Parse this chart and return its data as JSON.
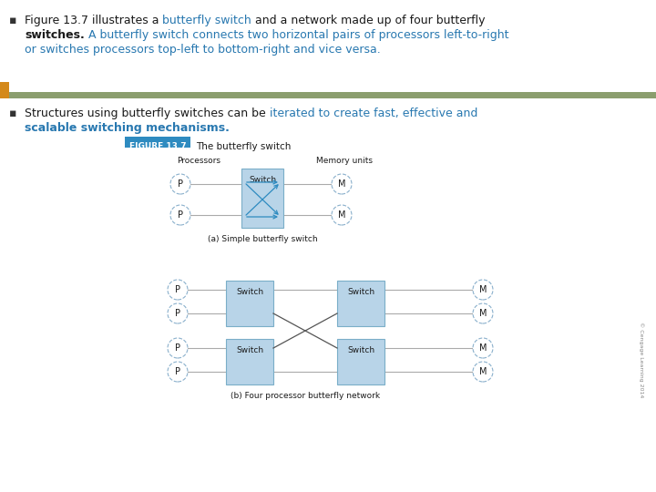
{
  "bg_color": "#ffffff",
  "header_bar_color": "#8b9e6e",
  "orange_bar_color": "#d4891a",
  "text_color": "#1a1a1a",
  "blue_text_color": "#2878b0",
  "bold_blue_text_color": "#2878b0",
  "fig_label_bg": "#2e8bc0",
  "fig_label_text": "FIGURE 13.7",
  "fig_title": "The butterfly switch",
  "switch_fill": "#b8d4e8",
  "switch_edge": "#7aaec8",
  "circle_fill": "#ffffff",
  "circle_edge": "#8ab0cc",
  "arrow_color": "#2e8bc0",
  "line_color": "#aaaaaa",
  "dark_line_color": "#555555",
  "caption_a": "(a) Simple butterfly switch",
  "caption_b": "(b) Four processor butterfly network",
  "copyright": "© Cengage Learning 2014",
  "bullet1_line1_black": "Figure 13.7 illustrates a ",
  "bullet1_line1_blue": "butterfly switch",
  "bullet1_line1_end": " and a network made up of four butterfly",
  "bullet1_line2_bold": "switches.",
  "bullet1_line2_blue": " A butterfly switch connects two horizontal pairs of processors left-to-right",
  "bullet1_line3_blue": "or switches processors top-left to bottom-right and vice versa.",
  "bullet2_line1_black": "Structures using butterfly switches can be ",
  "bullet2_line1_blue": "iterated to create fast, effective and",
  "bullet2_line2_blue_bold": "scalable switching mechanisms."
}
